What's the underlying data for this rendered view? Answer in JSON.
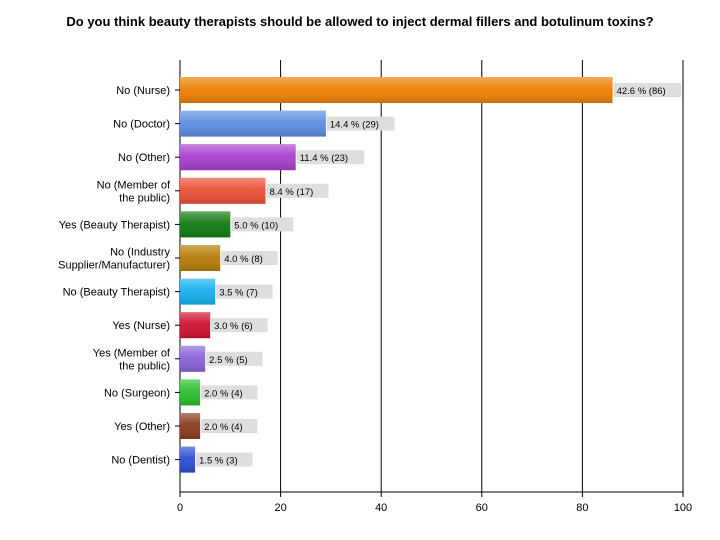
{
  "chart_data": {
    "type": "bar",
    "orientation": "horizontal",
    "title": "Do you think beauty therapists should be allowed to inject dermal fillers and botulinum toxins?",
    "xlim": [
      0,
      100
    ],
    "xticks": [
      0,
      20,
      40,
      60,
      80,
      100
    ],
    "grid": true,
    "categories": [
      [
        "No (Nurse)"
      ],
      [
        "No (Doctor)"
      ],
      [
        "No (Other)"
      ],
      [
        "No (Member of",
        "the public)"
      ],
      [
        "Yes (Beauty Therapist)"
      ],
      [
        "No (Industry",
        "Supplier/Manufacturer)"
      ],
      [
        "No (Beauty Therapist)"
      ],
      [
        "Yes (Nurse)"
      ],
      [
        "Yes (Member of",
        "the public)"
      ],
      [
        "No (Surgeon)"
      ],
      [
        "Yes (Other)"
      ],
      [
        "No (Dentist)"
      ]
    ],
    "values": [
      86,
      29,
      23,
      17,
      10,
      8,
      7,
      6,
      5,
      4,
      4,
      3
    ],
    "data_labels": [
      "42.6 % (86)",
      "14.4 % (29)",
      "11.4 % (23)",
      "8.4 % (17)",
      "5.0 % (10)",
      "4.0 % (8)",
      "3.5 % (7)",
      "3.0 % (6)",
      "2.5 % (5)",
      "2.0 % (4)",
      "2.0 % (4)",
      "1.5 % (3)"
    ],
    "colors": [
      "#ee7f01",
      "#5b8ee0",
      "#a83fcd",
      "#ec4f36",
      "#117a11",
      "#b77c08",
      "#15b0ee",
      "#d0112f",
      "#8a63d7",
      "#2cbe2c",
      "#8a3d1f",
      "#2a4fcf"
    ]
  }
}
